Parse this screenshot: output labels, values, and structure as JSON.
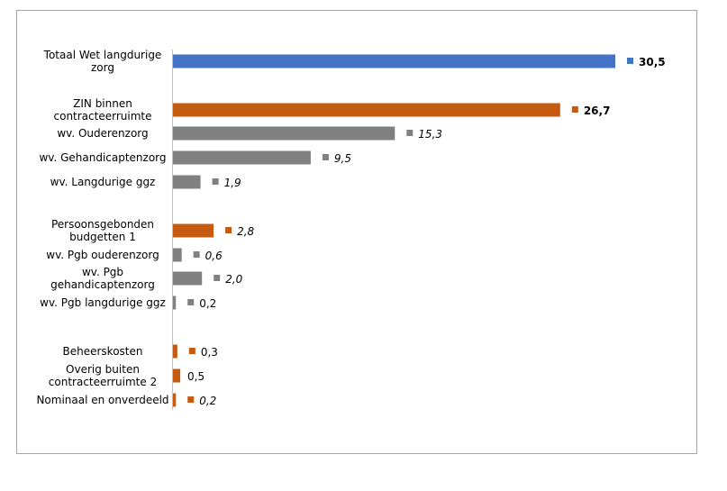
{
  "chart_data": {
    "type": "bar",
    "orientation": "horizontal",
    "title": "",
    "xlabel": "",
    "ylabel": "",
    "xlim": [
      0,
      32
    ],
    "grid": false,
    "legend": "none",
    "colors": {
      "blue": "#4472c4",
      "orange": "#c55a11",
      "gray": "#808080"
    },
    "bars": [
      {
        "label": [
          "Totaal Wet langdurige",
          "zorg"
        ],
        "value": 30.5,
        "display": "30,5",
        "color": "blue",
        "bold": true,
        "italic": false
      },
      {
        "label": [
          "ZIN binnen",
          "contracteerruimte"
        ],
        "value": 26.7,
        "display": "26,7",
        "color": "orange",
        "bold": true,
        "italic": false
      },
      {
        "label": [
          "wv. Ouderenzorg"
        ],
        "value": 15.3,
        "display": "15,3",
        "color": "gray",
        "bold": false,
        "italic": true
      },
      {
        "label": [
          "wv. Gehandicaptenzorg"
        ],
        "value": 9.5,
        "display": "9,5",
        "color": "gray",
        "bold": false,
        "italic": true
      },
      {
        "label": [
          "wv. Langdurige ggz"
        ],
        "value": 1.9,
        "display": "1,9",
        "color": "gray",
        "bold": false,
        "italic": true
      },
      {
        "label": [
          "Persoonsgebonden",
          "budgetten 1"
        ],
        "value": 2.8,
        "display": "2,8",
        "color": "orange",
        "bold": false,
        "italic": true
      },
      {
        "label": [
          "wv. Pgb ouderenzorg"
        ],
        "value": 0.6,
        "display": "0,6",
        "color": "gray",
        "bold": false,
        "italic": true
      },
      {
        "label": [
          "wv. Pgb",
          "gehandicaptenzorg"
        ],
        "value": 2.0,
        "display": "2,0",
        "color": "gray",
        "bold": false,
        "italic": true
      },
      {
        "label": [
          "wv. Pgb langdurige ggz"
        ],
        "value": 0.2,
        "display": "0,2",
        "color": "gray",
        "bold": false,
        "italic": false
      },
      {
        "label": [
          "Beheerskosten"
        ],
        "value": 0.3,
        "display": "0,3",
        "color": "orange",
        "bold": false,
        "italic": false
      },
      {
        "label": [
          "Overig buiten",
          "contracteerruimte 2"
        ],
        "value": 0.5,
        "display": "0,5",
        "color": "orange",
        "bold": false,
        "italic": false,
        "no_marker": true
      },
      {
        "label": [
          "Nominaal en onverdeeld"
        ],
        "value": 0.2,
        "display": "0,2",
        "color": "orange",
        "bold": false,
        "italic": true
      }
    ]
  }
}
